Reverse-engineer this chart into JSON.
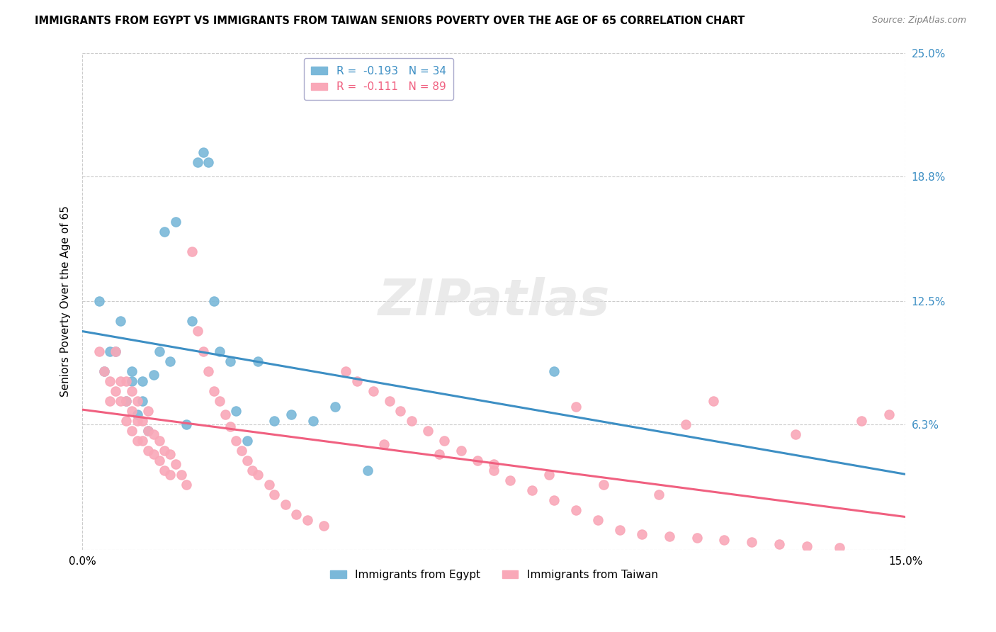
{
  "title": "IMMIGRANTS FROM EGYPT VS IMMIGRANTS FROM TAIWAN SENIORS POVERTY OVER THE AGE OF 65 CORRELATION CHART",
  "source": "Source: ZipAtlas.com",
  "ylabel": "Seniors Poverty Over the Age of 65",
  "xlim": [
    0.0,
    0.15
  ],
  "ylim": [
    0.0,
    0.25
  ],
  "yticks": [
    0.0,
    0.063,
    0.125,
    0.188,
    0.25
  ],
  "ytick_labels_right": [
    "",
    "6.3%",
    "12.5%",
    "18.8%",
    "25.0%"
  ],
  "xtick_labels": [
    "0.0%",
    "",
    "",
    "",
    "",
    "",
    "",
    "",
    "",
    "",
    "",
    "",
    "",
    "",
    "",
    "15.0%"
  ],
  "legend_egypt": "R =  -0.193   N = 34",
  "legend_taiwan": "R =  -0.111   N = 89",
  "bottom_label_egypt": "Immigrants from Egypt",
  "bottom_label_taiwan": "Immigrants from Taiwan",
  "color_egypt": "#7ab8d9",
  "color_taiwan": "#f9a8b8",
  "egypt_line_color": "#3d8fc4",
  "taiwan_line_color": "#f06080",
  "egypt_text_color": "#3d8fc4",
  "taiwan_text_color": "#f06080",
  "right_axis_color": "#3d8fc4",
  "watermark_text": "ZIPatlas",
  "watermark_color": "#dddddd",
  "background_color": "#ffffff",
  "grid_color": "#cccccc",
  "egypt_x": [
    0.003,
    0.004,
    0.005,
    0.006,
    0.007,
    0.008,
    0.009,
    0.009,
    0.01,
    0.011,
    0.011,
    0.012,
    0.013,
    0.014,
    0.015,
    0.016,
    0.017,
    0.019,
    0.02,
    0.021,
    0.022,
    0.023,
    0.024,
    0.025,
    0.027,
    0.028,
    0.03,
    0.032,
    0.035,
    0.038,
    0.042,
    0.046,
    0.052,
    0.086
  ],
  "egypt_y": [
    0.125,
    0.09,
    0.1,
    0.1,
    0.115,
    0.075,
    0.085,
    0.09,
    0.068,
    0.075,
    0.085,
    0.06,
    0.088,
    0.1,
    0.16,
    0.095,
    0.165,
    0.063,
    0.115,
    0.195,
    0.2,
    0.195,
    0.125,
    0.1,
    0.095,
    0.07,
    0.055,
    0.095,
    0.065,
    0.068,
    0.065,
    0.072,
    0.04,
    0.09
  ],
  "taiwan_x": [
    0.003,
    0.004,
    0.005,
    0.005,
    0.006,
    0.006,
    0.007,
    0.007,
    0.008,
    0.008,
    0.008,
    0.009,
    0.009,
    0.009,
    0.01,
    0.01,
    0.01,
    0.011,
    0.011,
    0.012,
    0.012,
    0.012,
    0.013,
    0.013,
    0.014,
    0.014,
    0.015,
    0.015,
    0.016,
    0.016,
    0.017,
    0.018,
    0.019,
    0.02,
    0.021,
    0.022,
    0.023,
    0.024,
    0.025,
    0.026,
    0.027,
    0.028,
    0.029,
    0.03,
    0.031,
    0.032,
    0.034,
    0.035,
    0.037,
    0.039,
    0.041,
    0.044,
    0.048,
    0.05,
    0.053,
    0.056,
    0.058,
    0.06,
    0.063,
    0.066,
    0.069,
    0.072,
    0.075,
    0.078,
    0.082,
    0.086,
    0.09,
    0.094,
    0.098,
    0.102,
    0.107,
    0.112,
    0.117,
    0.122,
    0.127,
    0.132,
    0.138,
    0.142,
    0.147,
    0.09,
    0.11,
    0.13,
    0.055,
    0.065,
    0.075,
    0.085,
    0.095,
    0.105,
    0.115
  ],
  "taiwan_y": [
    0.1,
    0.09,
    0.085,
    0.075,
    0.08,
    0.1,
    0.075,
    0.085,
    0.065,
    0.075,
    0.085,
    0.06,
    0.07,
    0.08,
    0.055,
    0.065,
    0.075,
    0.055,
    0.065,
    0.05,
    0.06,
    0.07,
    0.048,
    0.058,
    0.045,
    0.055,
    0.04,
    0.05,
    0.038,
    0.048,
    0.043,
    0.038,
    0.033,
    0.15,
    0.11,
    0.1,
    0.09,
    0.08,
    0.075,
    0.068,
    0.062,
    0.055,
    0.05,
    0.045,
    0.04,
    0.038,
    0.033,
    0.028,
    0.023,
    0.018,
    0.015,
    0.012,
    0.09,
    0.085,
    0.08,
    0.075,
    0.07,
    0.065,
    0.06,
    0.055,
    0.05,
    0.045,
    0.04,
    0.035,
    0.03,
    0.025,
    0.02,
    0.015,
    0.01,
    0.008,
    0.007,
    0.006,
    0.005,
    0.004,
    0.003,
    0.002,
    0.001,
    0.065,
    0.068,
    0.072,
    0.063,
    0.058,
    0.053,
    0.048,
    0.043,
    0.038,
    0.033,
    0.028,
    0.075
  ]
}
